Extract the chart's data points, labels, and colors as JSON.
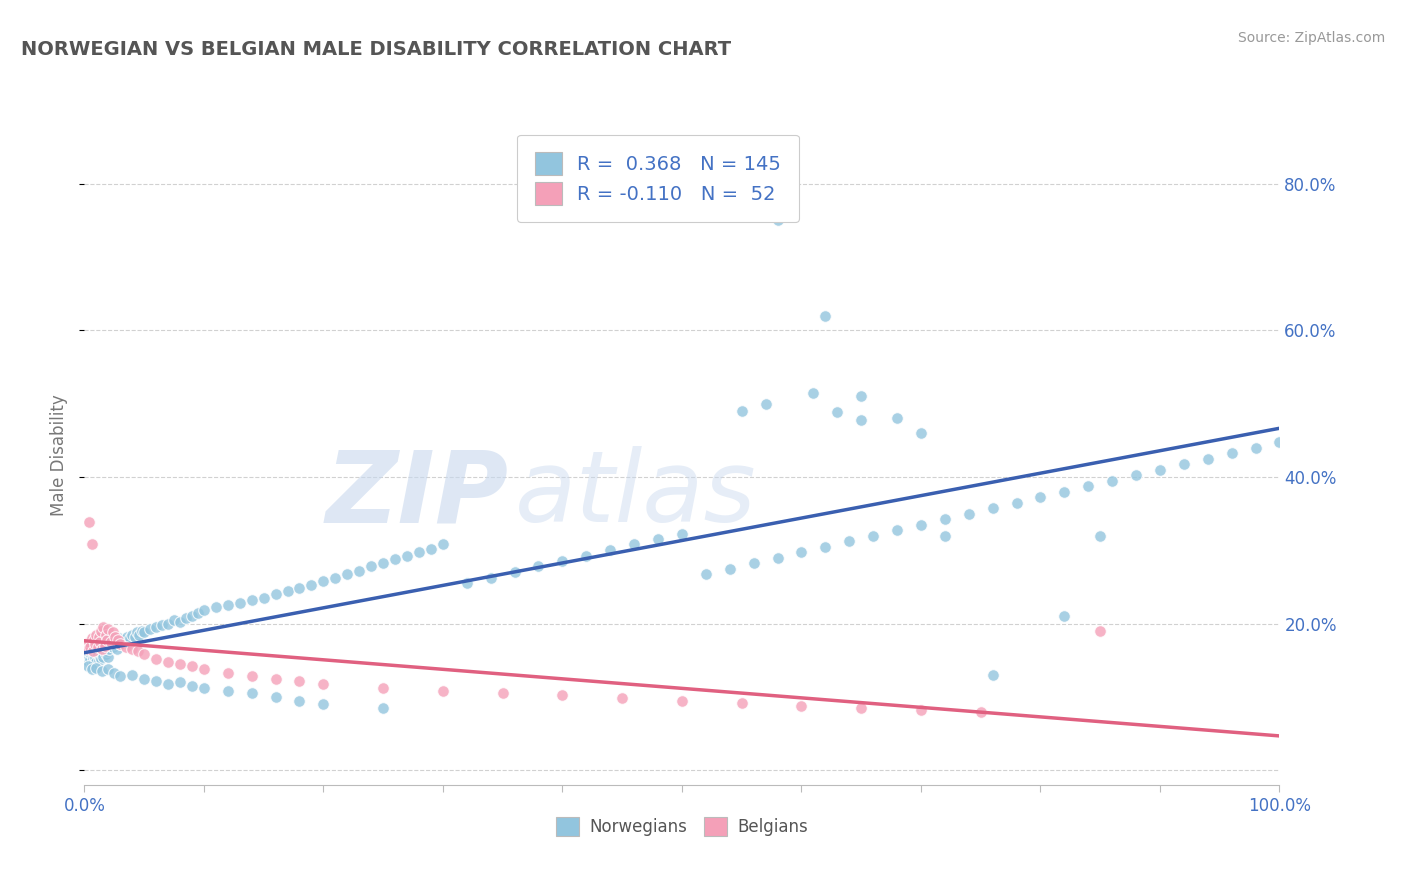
{
  "title": "NORWEGIAN VS BELGIAN MALE DISABILITY CORRELATION CHART",
  "source": "Source: ZipAtlas.com",
  "ylabel": "Male Disability",
  "xlim": [
    0.0,
    1.0
  ],
  "ylim": [
    -0.02,
    0.88
  ],
  "norwegian_color": "#92c5de",
  "belgian_color": "#f4a0b8",
  "trend_norwegian_color": "#3a5fb0",
  "trend_belgian_color": "#e06080",
  "background_color": "#ffffff",
  "grid_color": "#cccccc",
  "R_norwegian": 0.368,
  "N_norwegian": 145,
  "R_belgian": -0.11,
  "N_belgian": 52,
  "legend_label_norwegian": "Norwegians",
  "legend_label_belgian": "Belgians",
  "watermark_part1": "ZIP",
  "watermark_part2": "atlas",
  "axis_color": "#4472c4",
  "title_color": "#555555",
  "source_color": "#999999",
  "label_color": "#777777",
  "nor_x": [
    0.002,
    0.003,
    0.004,
    0.005,
    0.005,
    0.006,
    0.006,
    0.007,
    0.007,
    0.008,
    0.008,
    0.009,
    0.009,
    0.01,
    0.01,
    0.011,
    0.011,
    0.012,
    0.012,
    0.013,
    0.013,
    0.014,
    0.014,
    0.015,
    0.015,
    0.016,
    0.016,
    0.017,
    0.017,
    0.018,
    0.018,
    0.019,
    0.019,
    0.02,
    0.02,
    0.021,
    0.022,
    0.023,
    0.024,
    0.025,
    0.026,
    0.027,
    0.028,
    0.029,
    0.03,
    0.032,
    0.034,
    0.036,
    0.038,
    0.04,
    0.042,
    0.044,
    0.046,
    0.048,
    0.05,
    0.055,
    0.06,
    0.065,
    0.07,
    0.075,
    0.08,
    0.085,
    0.09,
    0.095,
    0.1,
    0.11,
    0.12,
    0.13,
    0.14,
    0.15,
    0.16,
    0.17,
    0.18,
    0.19,
    0.2,
    0.21,
    0.22,
    0.23,
    0.24,
    0.25,
    0.26,
    0.27,
    0.28,
    0.29,
    0.3,
    0.32,
    0.34,
    0.36,
    0.38,
    0.4,
    0.42,
    0.44,
    0.46,
    0.48,
    0.5,
    0.52,
    0.54,
    0.56,
    0.58,
    0.6,
    0.62,
    0.64,
    0.66,
    0.68,
    0.7,
    0.72,
    0.74,
    0.76,
    0.78,
    0.8,
    0.82,
    0.84,
    0.86,
    0.88,
    0.9,
    0.92,
    0.94,
    0.96,
    0.98,
    1.0,
    0.55,
    0.57,
    0.61,
    0.63,
    0.65,
    0.003,
    0.006,
    0.01,
    0.015,
    0.02,
    0.025,
    0.03,
    0.04,
    0.05,
    0.06,
    0.07,
    0.08,
    0.09,
    0.1,
    0.12,
    0.14,
    0.16,
    0.18,
    0.2,
    0.25
  ],
  "nor_y": [
    0.155,
    0.15,
    0.148,
    0.152,
    0.16,
    0.145,
    0.158,
    0.152,
    0.165,
    0.148,
    0.162,
    0.155,
    0.17,
    0.148,
    0.165,
    0.158,
    0.172,
    0.15,
    0.168,
    0.155,
    0.175,
    0.152,
    0.168,
    0.16,
    0.178,
    0.155,
    0.172,
    0.162,
    0.18,
    0.158,
    0.175,
    0.162,
    0.182,
    0.155,
    0.178,
    0.165,
    0.17,
    0.175,
    0.168,
    0.172,
    0.178,
    0.165,
    0.175,
    0.18,
    0.172,
    0.178,
    0.175,
    0.182,
    0.18,
    0.185,
    0.182,
    0.188,
    0.185,
    0.19,
    0.188,
    0.192,
    0.195,
    0.198,
    0.2,
    0.205,
    0.202,
    0.208,
    0.21,
    0.215,
    0.218,
    0.222,
    0.225,
    0.228,
    0.232,
    0.235,
    0.24,
    0.245,
    0.248,
    0.252,
    0.258,
    0.262,
    0.268,
    0.272,
    0.278,
    0.282,
    0.288,
    0.292,
    0.298,
    0.302,
    0.308,
    0.255,
    0.262,
    0.27,
    0.278,
    0.285,
    0.292,
    0.3,
    0.308,
    0.315,
    0.322,
    0.268,
    0.275,
    0.282,
    0.29,
    0.298,
    0.305,
    0.312,
    0.32,
    0.328,
    0.335,
    0.342,
    0.35,
    0.358,
    0.365,
    0.372,
    0.38,
    0.388,
    0.395,
    0.402,
    0.41,
    0.418,
    0.425,
    0.432,
    0.44,
    0.448,
    0.49,
    0.5,
    0.515,
    0.488,
    0.478,
    0.142,
    0.138,
    0.14,
    0.135,
    0.138,
    0.132,
    0.128,
    0.13,
    0.125,
    0.122,
    0.118,
    0.12,
    0.115,
    0.112,
    0.108,
    0.105,
    0.1,
    0.095,
    0.09,
    0.085
  ],
  "nor_outliers_x": [
    0.58,
    0.62,
    0.65,
    0.68,
    0.7,
    0.72,
    0.76,
    0.82,
    0.85
  ],
  "nor_outliers_y": [
    0.75,
    0.62,
    0.51,
    0.48,
    0.46,
    0.32,
    0.13,
    0.21,
    0.32
  ],
  "bel_x": [
    0.002,
    0.003,
    0.004,
    0.005,
    0.006,
    0.007,
    0.008,
    0.009,
    0.01,
    0.011,
    0.012,
    0.013,
    0.014,
    0.015,
    0.016,
    0.017,
    0.018,
    0.019,
    0.02,
    0.022,
    0.024,
    0.026,
    0.028,
    0.03,
    0.035,
    0.04,
    0.045,
    0.05,
    0.06,
    0.07,
    0.08,
    0.09,
    0.1,
    0.12,
    0.14,
    0.16,
    0.18,
    0.2,
    0.25,
    0.3,
    0.35,
    0.4,
    0.45,
    0.5,
    0.55,
    0.6,
    0.65,
    0.7,
    0.75,
    0.85,
    0.004,
    0.006
  ],
  "bel_y": [
    0.17,
    0.165,
    0.175,
    0.168,
    0.18,
    0.162,
    0.178,
    0.172,
    0.185,
    0.168,
    0.182,
    0.175,
    0.19,
    0.165,
    0.195,
    0.17,
    0.185,
    0.178,
    0.192,
    0.175,
    0.188,
    0.182,
    0.178,
    0.172,
    0.168,
    0.165,
    0.162,
    0.158,
    0.152,
    0.148,
    0.145,
    0.142,
    0.138,
    0.132,
    0.128,
    0.125,
    0.122,
    0.118,
    0.112,
    0.108,
    0.105,
    0.102,
    0.098,
    0.095,
    0.092,
    0.088,
    0.085,
    0.082,
    0.08,
    0.19,
    0.338,
    0.308
  ]
}
